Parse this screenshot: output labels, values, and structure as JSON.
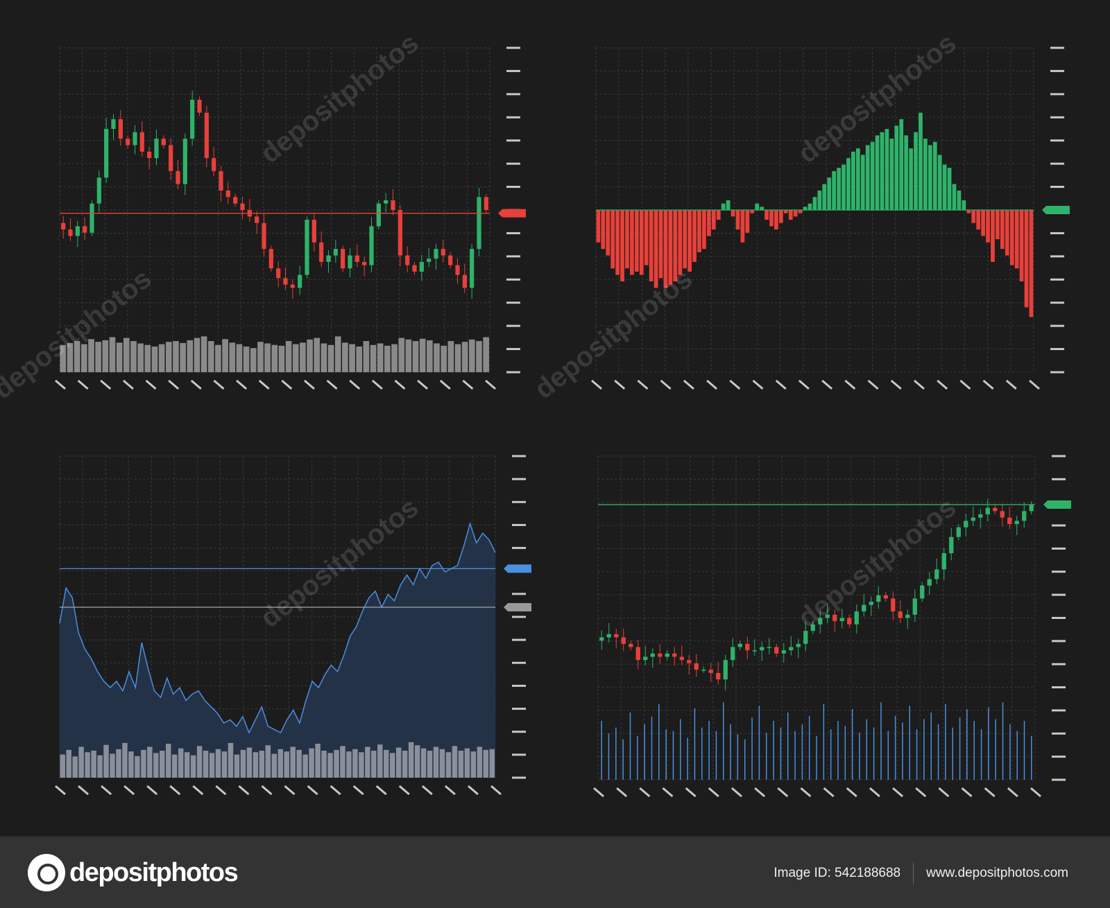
{
  "colors": {
    "background": "#1c1c1c",
    "grid": "#3a3a3a",
    "up": "#2fb36a",
    "down": "#e8403a",
    "blue": "#4a8fe0",
    "gray": "#9a9a9a",
    "tick": "#c8c8c8"
  },
  "chart_data": [
    {
      "type": "candlestick",
      "title": "",
      "ylim": [
        0,
        100
      ],
      "reference_line": {
        "value": 49,
        "color": "#e8403a"
      },
      "closes": [
        46,
        44,
        42,
        45,
        43,
        52,
        60,
        75,
        78,
        72,
        70,
        74,
        68,
        66,
        72,
        70,
        62,
        58,
        72,
        84,
        80,
        66,
        62,
        56,
        54,
        52,
        50,
        48,
        46,
        38,
        32,
        29,
        27,
        26,
        30,
        47,
        40,
        34,
        36,
        38,
        32,
        36,
        34,
        33,
        45,
        52,
        53,
        50,
        36,
        33,
        31,
        34,
        35,
        38,
        36,
        33,
        30,
        26,
        38,
        54,
        50
      ],
      "volume": [
        70,
        75,
        80,
        72,
        85,
        78,
        82,
        90,
        76,
        88,
        80,
        74,
        70,
        66,
        72,
        78,
        80,
        75,
        82,
        88,
        92,
        80,
        70,
        85,
        76,
        72,
        66,
        62,
        78,
        74,
        70,
        68,
        80,
        72,
        76,
        84,
        88,
        74,
        70,
        92,
        76,
        72,
        66,
        80,
        70,
        74,
        68,
        72,
        88,
        84,
        80,
        86,
        82,
        74,
        68,
        80,
        72,
        78,
        84,
        80,
        90
      ],
      "vol_color": "#8a8a8a"
    },
    {
      "type": "bar",
      "title": "",
      "ylim": [
        -50,
        50
      ],
      "reference_line": {
        "value": 0,
        "color": "#2fb36a"
      },
      "values": [
        -10,
        -12,
        -14,
        -18,
        -20,
        -22,
        -18,
        -20,
        -19,
        -20,
        -17,
        -22,
        -24,
        -21,
        -24,
        -23,
        -22,
        -20,
        -18,
        -19,
        -16,
        -13,
        -12,
        -8,
        -6,
        -3,
        2,
        3,
        -2,
        -6,
        -10,
        -7,
        -1,
        2,
        1,
        -3,
        -5,
        -6,
        -4,
        -1,
        -3,
        -2,
        -1,
        1,
        2,
        4,
        6,
        8,
        10,
        12,
        13,
        14,
        16,
        18,
        19,
        17,
        20,
        21,
        23,
        24,
        25,
        22,
        26,
        28,
        23,
        19,
        24,
        30,
        22,
        20,
        21,
        17,
        14,
        13,
        8,
        6,
        3,
        -1,
        -4,
        -6,
        -8,
        -10,
        -16,
        -9,
        -12,
        -14,
        -17,
        -18,
        -22,
        -30,
        -33
      ]
    },
    {
      "type": "area",
      "title": "",
      "ylim": [
        0,
        100
      ],
      "reference_lines": [
        {
          "value": 65,
          "color": "#4a8fe0"
        },
        {
          "value": 53,
          "color": "#9a9a9a"
        }
      ],
      "values": [
        48,
        59,
        56,
        45,
        40,
        37,
        33,
        30,
        28,
        30,
        27,
        33,
        28,
        42,
        34,
        27,
        25,
        31,
        26,
        28,
        24,
        26,
        27,
        24,
        22,
        20,
        17,
        18,
        16,
        19,
        14,
        18,
        22,
        16,
        15,
        14,
        18,
        21,
        17,
        24,
        30,
        28,
        32,
        35,
        33,
        38,
        44,
        47,
        52,
        56,
        58,
        53,
        57,
        55,
        60,
        63,
        60,
        65,
        62,
        66,
        67,
        64,
        65,
        66,
        72,
        79,
        73,
        76,
        74,
        70
      ],
      "volume": [
        60,
        72,
        55,
        80,
        66,
        70,
        58,
        85,
        62,
        74,
        90,
        68,
        56,
        72,
        80,
        64,
        70,
        88,
        60,
        76,
        66,
        58,
        82,
        70,
        64,
        74,
        68,
        90,
        60,
        72,
        78,
        66,
        70,
        84,
        62,
        74,
        68,
        80,
        72,
        60,
        76,
        88,
        70,
        64,
        72,
        82,
        68,
        74,
        66,
        80,
        70,
        86,
        72,
        64,
        78,
        70,
        92,
        84,
        76,
        70,
        80,
        74,
        66,
        82,
        70,
        76,
        68,
        80,
        72,
        74
      ],
      "vol_color": "#8a8f99"
    },
    {
      "type": "candlestick",
      "title": "",
      "ylim": [
        0,
        100
      ],
      "reference_line": {
        "value": 85,
        "color": "#2fb36a"
      },
      "closes": [
        43,
        44,
        45,
        44,
        42,
        41,
        37,
        38,
        39,
        38,
        39,
        38,
        37,
        36,
        34,
        34,
        33,
        31,
        37,
        41,
        42,
        40,
        40,
        41,
        41,
        39,
        40,
        41,
        42,
        46,
        48,
        50,
        51,
        49,
        50,
        48,
        52,
        54,
        55,
        57,
        56,
        52,
        50,
        51,
        56,
        60,
        62,
        65,
        70,
        75,
        78,
        80,
        81,
        82,
        84,
        83,
        81,
        79,
        80,
        83,
        85
      ],
      "volume": [
        70,
        55,
        62,
        48,
        80,
        52,
        66,
        75,
        90,
        60,
        58,
        72,
        50,
        85,
        62,
        70,
        58,
        92,
        66,
        54,
        48,
        74,
        88,
        56,
        70,
        62,
        80,
        58,
        66,
        76,
        52,
        90,
        60,
        70,
        64,
        84,
        56,
        72,
        62,
        92,
        58,
        76,
        68,
        88,
        60,
        72,
        80,
        66,
        90,
        62,
        74,
        84,
        70,
        60,
        86,
        72,
        92,
        66,
        58,
        70,
        52
      ],
      "vol_color": "#4a8fe0"
    }
  ],
  "footer": {
    "logo_text": "depositphotos",
    "image_id": "Image ID: 542188688",
    "website": "www.depositphotos.com"
  },
  "watermark": "depositphotos"
}
